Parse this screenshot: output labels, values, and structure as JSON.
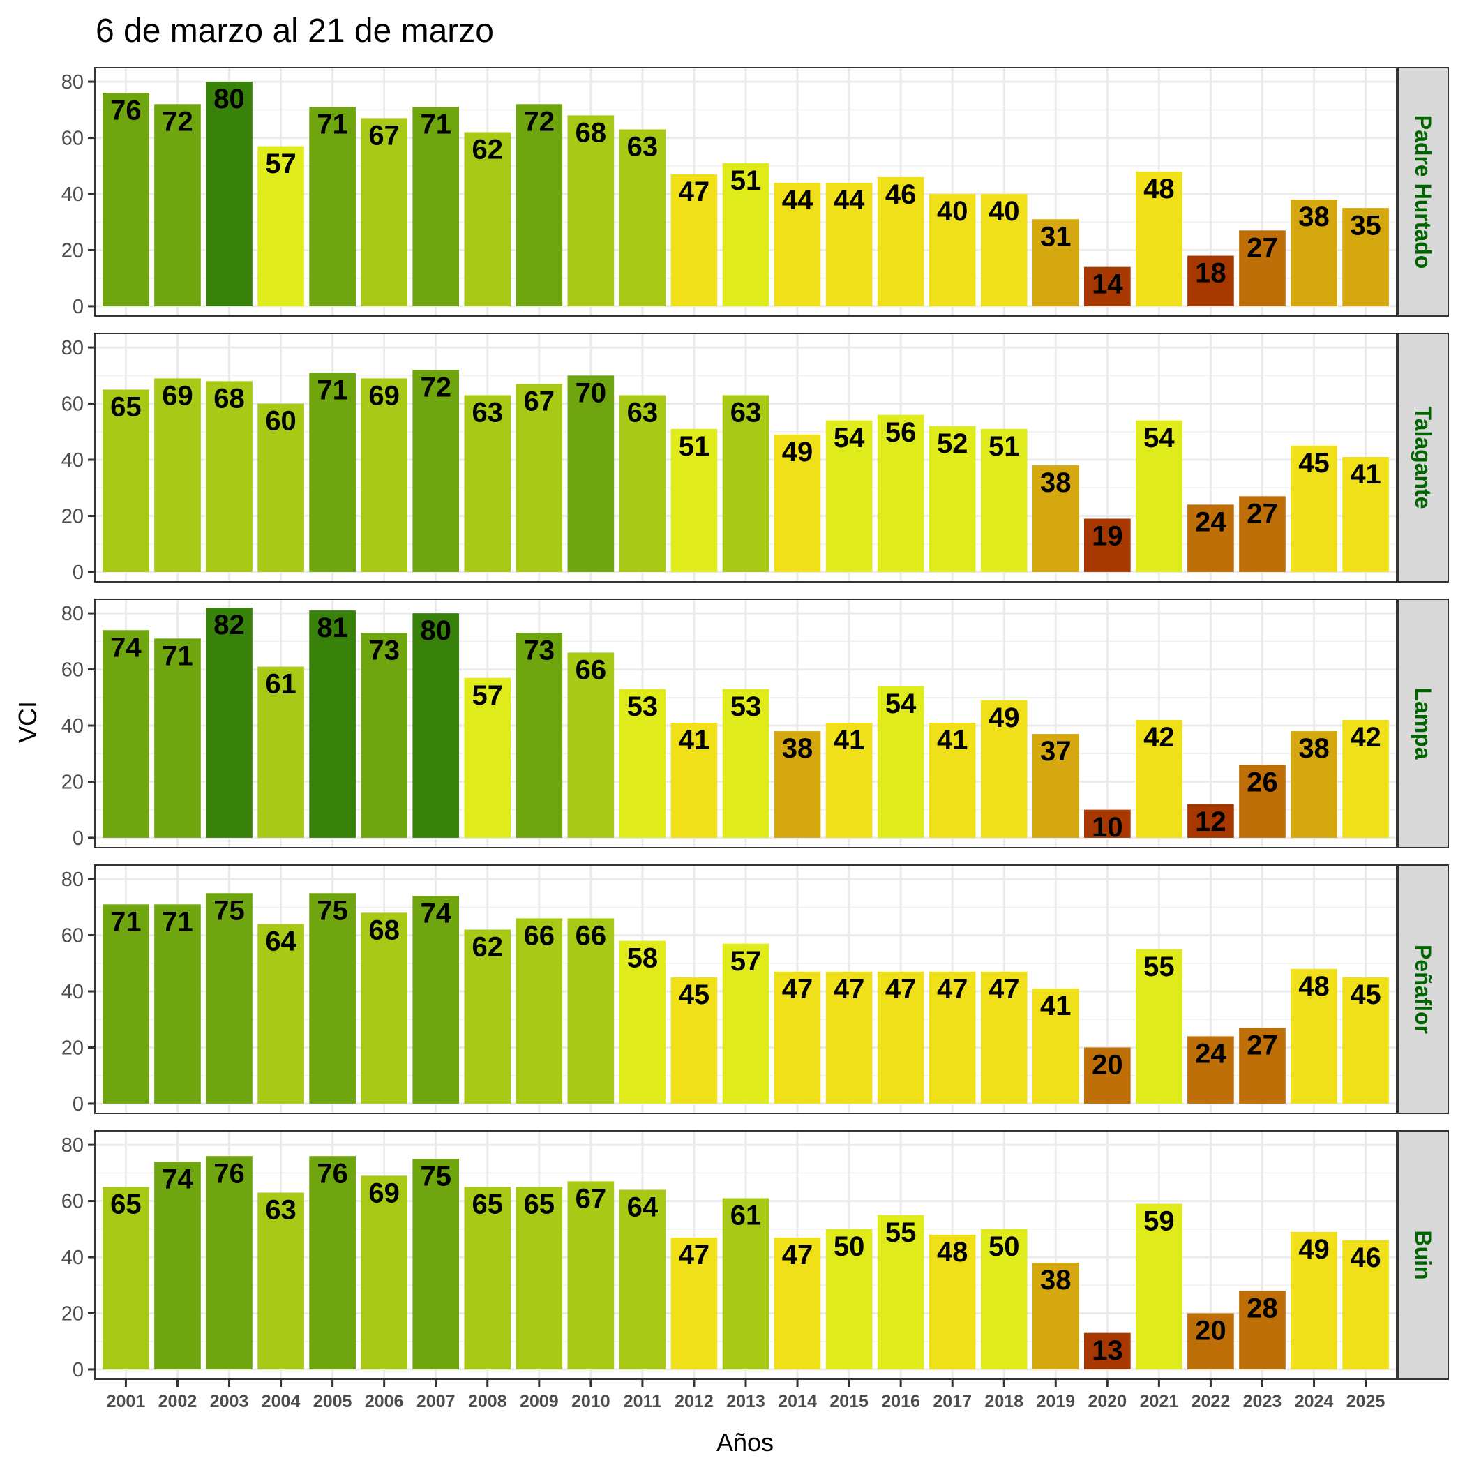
{
  "chart_data": {
    "type": "bar",
    "title": "6 de marzo al 21 de marzo",
    "xlabel": "Años",
    "ylabel": "VCI",
    "ylim": [
      -3.5,
      85
    ],
    "yticks": [
      0,
      20,
      40,
      60,
      80
    ],
    "grid": true,
    "legend": "none",
    "strip_text_color": "#006400",
    "categories": [
      "2001",
      "2002",
      "2003",
      "2004",
      "2005",
      "2006",
      "2007",
      "2008",
      "2009",
      "2010",
      "2011",
      "2012",
      "2013",
      "2014",
      "2015",
      "2016",
      "2017",
      "2018",
      "2019",
      "2020",
      "2021",
      "2022",
      "2023",
      "2024",
      "2025"
    ],
    "color_scale": [
      {
        "min": 80,
        "color": "#38810b"
      },
      {
        "min": 70,
        "color": "#6fa60f"
      },
      {
        "min": 60,
        "color": "#a8c916"
      },
      {
        "min": 50,
        "color": "#dfeb1b"
      },
      {
        "min": 40,
        "color": "#f0e01a"
      },
      {
        "min": 30,
        "color": "#d5a810"
      },
      {
        "min": 20,
        "color": "#bf6f08"
      },
      {
        "min": 10,
        "color": "#a63800"
      },
      {
        "min": 0,
        "color": "#8b0000"
      }
    ],
    "series": [
      {
        "name": "Padre Hurtado",
        "values": [
          76,
          72,
          80,
          57,
          71,
          67,
          71,
          62,
          72,
          68,
          63,
          47,
          51,
          44,
          44,
          46,
          40,
          40,
          31,
          14,
          48,
          18,
          27,
          38,
          35
        ]
      },
      {
        "name": "Talagante",
        "values": [
          65,
          69,
          68,
          60,
          71,
          69,
          72,
          63,
          67,
          70,
          63,
          51,
          63,
          49,
          54,
          56,
          52,
          51,
          38,
          19,
          54,
          24,
          27,
          45,
          41
        ]
      },
      {
        "name": "Lampa",
        "values": [
          74,
          71,
          82,
          61,
          81,
          73,
          80,
          57,
          73,
          66,
          53,
          41,
          53,
          38,
          41,
          54,
          41,
          49,
          37,
          10,
          42,
          12,
          26,
          38,
          42
        ]
      },
      {
        "name": "Peñaflor",
        "values": [
          71,
          71,
          75,
          64,
          75,
          68,
          74,
          62,
          66,
          66,
          58,
          45,
          57,
          47,
          47,
          47,
          47,
          47,
          41,
          20,
          55,
          24,
          27,
          48,
          45
        ]
      },
      {
        "name": "Buin",
        "values": [
          65,
          74,
          76,
          63,
          76,
          69,
          75,
          65,
          65,
          67,
          64,
          47,
          61,
          47,
          50,
          55,
          48,
          50,
          38,
          13,
          59,
          20,
          28,
          49,
          46
        ]
      }
    ]
  }
}
